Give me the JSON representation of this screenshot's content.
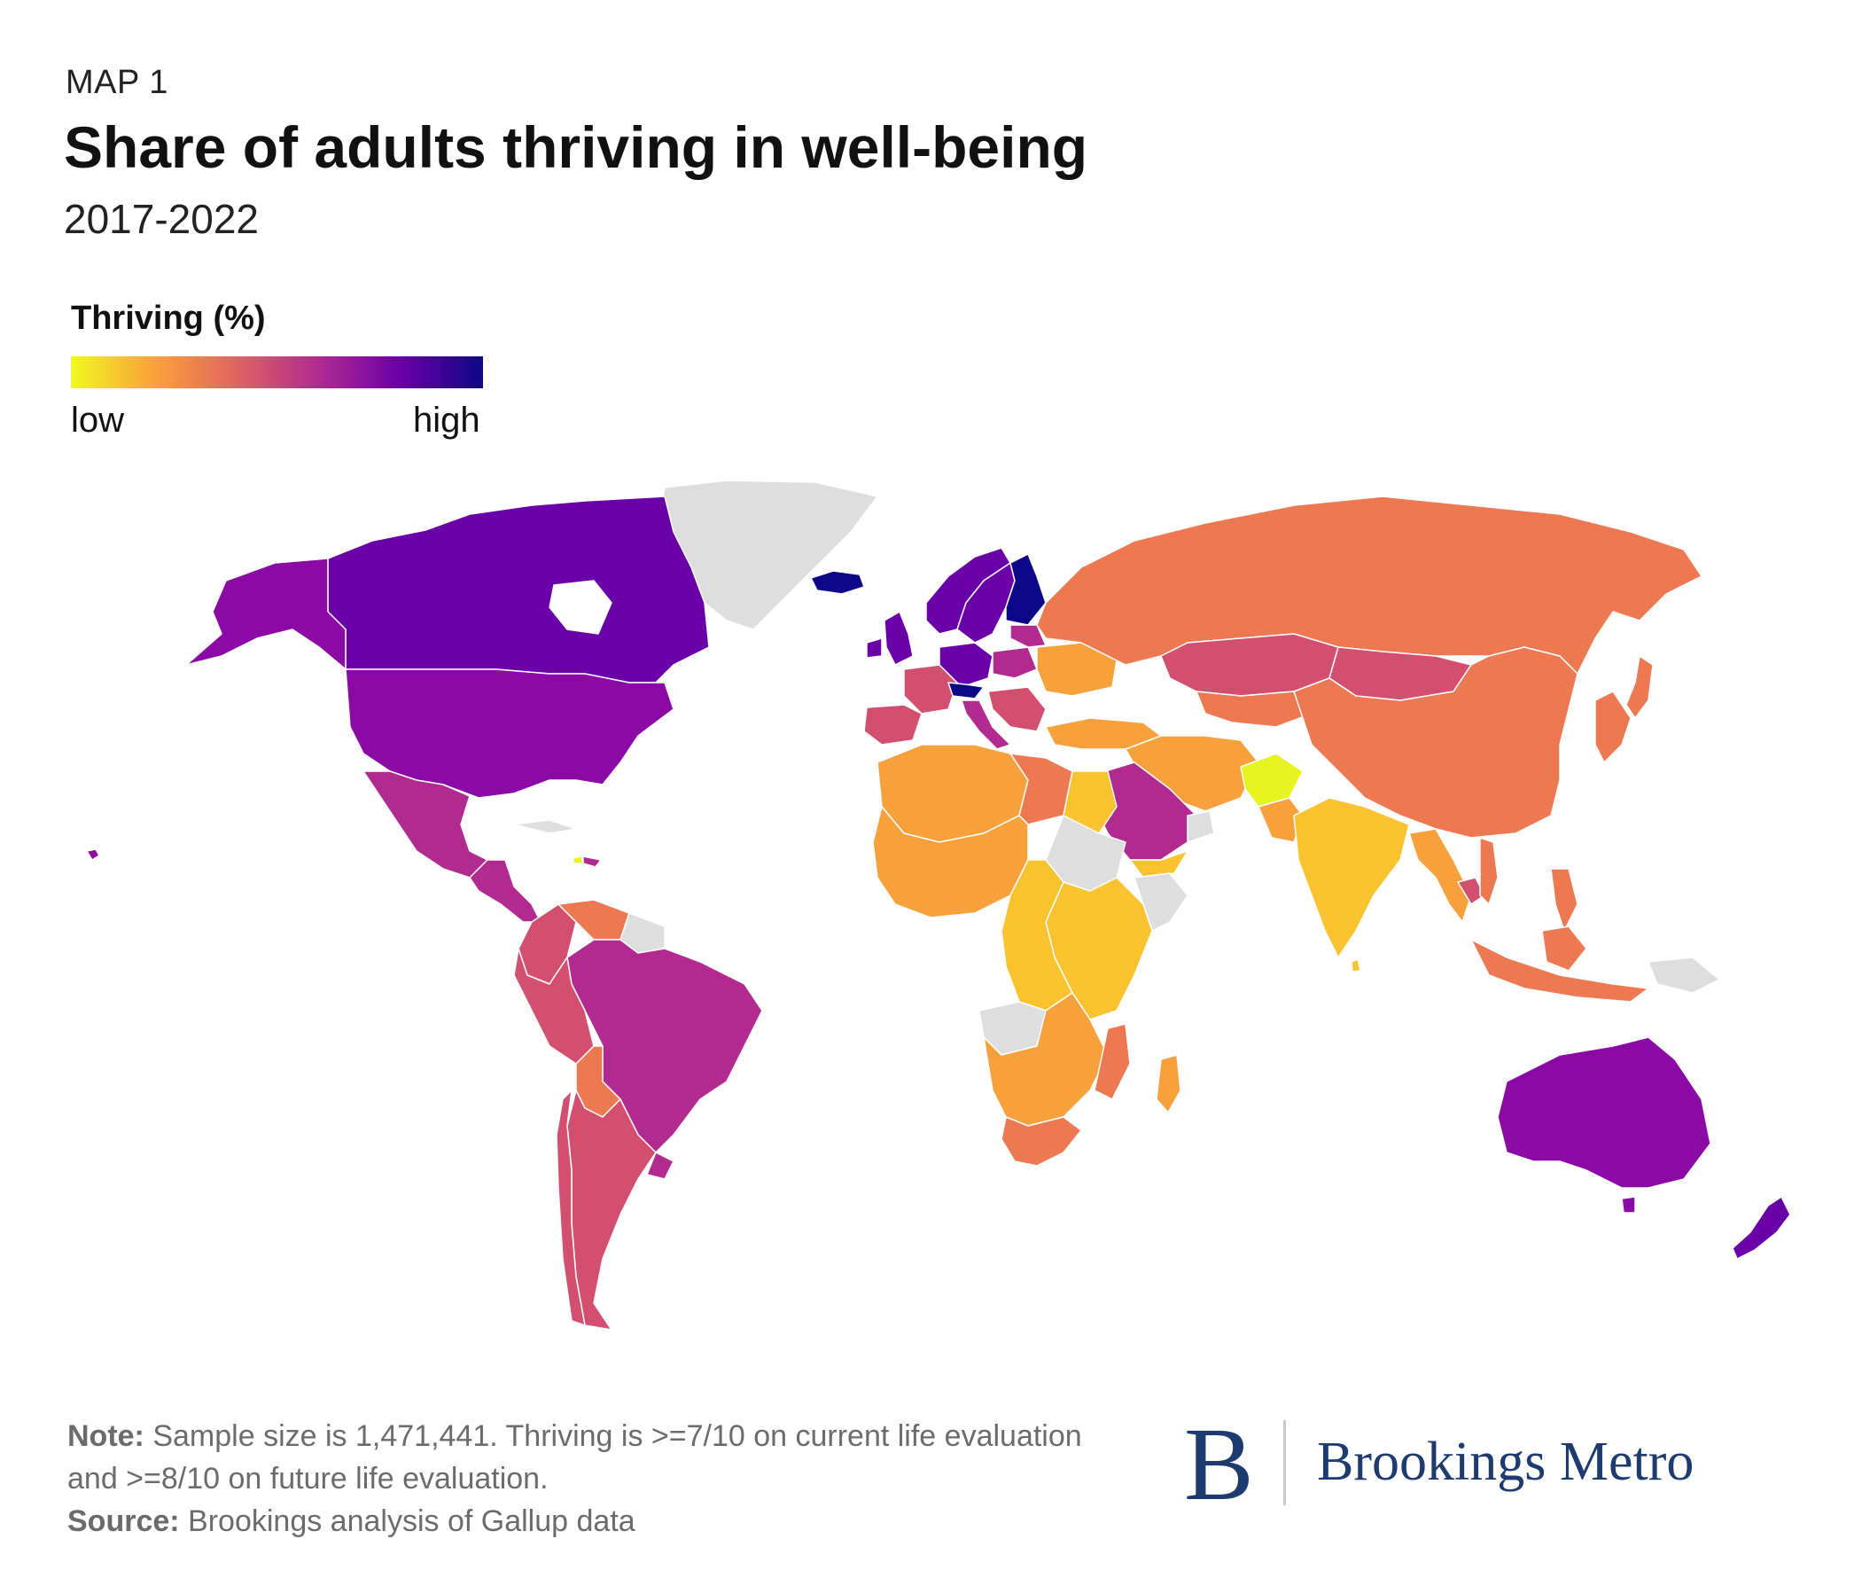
{
  "header": {
    "kicker": "MAP 1",
    "title": "Share of adults thriving in well-being",
    "subtitle": "2017-2022"
  },
  "legend": {
    "title": "Thriving (%)",
    "low_label": "low",
    "high_label": "high",
    "colors": [
      "#f0f921",
      "#fba238",
      "#e16462",
      "#b12a90",
      "#6a00a8",
      "#0d0887"
    ]
  },
  "map_colors": {
    "highest": "#0d0887",
    "very_high": "#6a00a8",
    "high": "#8b0aa5",
    "mid_high": "#b12a90",
    "mid": "#d24f70",
    "mid_low": "#ed7953",
    "low": "#f7a13c",
    "very_low": "#f9c22f",
    "lowest": "#e8f41f",
    "no_data": "#dedede"
  },
  "footer": {
    "note_label": "Note:",
    "note_text": "Sample size is 1,471,441. Thriving is >=7/10 on current life evaluation and >=8/10 on future life evaluation.",
    "source_label": "Source:",
    "source_text": "Brookings analysis of Gallup data"
  },
  "logo": {
    "mark": "B",
    "name": "Brookings Metro"
  }
}
